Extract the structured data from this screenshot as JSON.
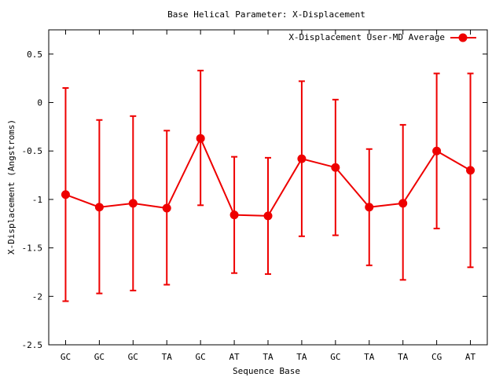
{
  "chart_data": {
    "type": "line",
    "title": "Base  Helical Parameter: X-Displacement",
    "xlabel": "Sequence Base",
    "ylabel": "X-Displacement (Angstroms)",
    "categories": [
      "GC",
      "GC",
      "GC",
      "TA",
      "GC",
      "AT",
      "TA",
      "TA",
      "GC",
      "TA",
      "TA",
      "CG",
      "AT"
    ],
    "ylim": [
      -2.5,
      0.75
    ],
    "yticks": [
      0.5,
      0,
      -0.5,
      -1,
      -1.5,
      -2,
      -2.5
    ],
    "ytick_labels": [
      "0.5",
      "0",
      "-0.5",
      "-1",
      "-1.5",
      "-2",
      "-2.5"
    ],
    "grid": false,
    "legend_position": "top-right",
    "series": [
      {
        "name": "X-Displacement User-MD Average",
        "color": "#ee0000",
        "values": [
          -0.95,
          -1.08,
          -1.04,
          -1.09,
          -0.37,
          -1.16,
          -1.17,
          -0.58,
          -0.67,
          -1.08,
          -1.04,
          -0.5,
          -0.7
        ],
        "error_low": [
          -2.05,
          -1.97,
          -1.94,
          -1.88,
          -1.06,
          -1.76,
          -1.77,
          -1.38,
          -1.37,
          -1.68,
          -1.83,
          -1.3,
          -1.7
        ],
        "error_high": [
          0.15,
          -0.18,
          -0.14,
          -0.29,
          0.33,
          -0.56,
          -0.57,
          0.22,
          0.03,
          -0.48,
          -0.23,
          0.3,
          0.3
        ]
      }
    ]
  }
}
